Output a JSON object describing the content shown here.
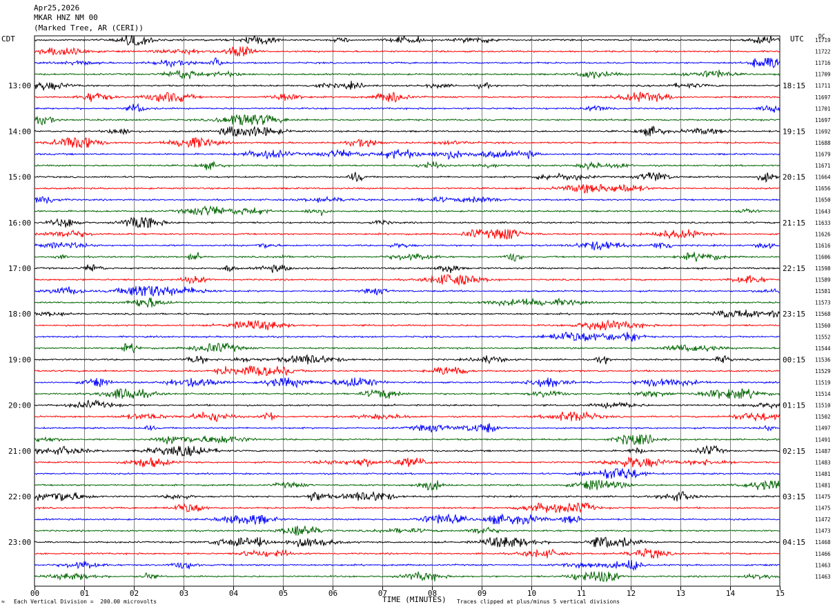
{
  "header": {
    "date": "Apr25,2026",
    "station": "MKAR HNZ NM 00",
    "location": "(Marked Tree, AR (CERI))"
  },
  "left_axis_label": "CDT",
  "right_axis_label": "UTC",
  "dc_label": "DC",
  "footer": {
    "scale_note": "Each Vertical Division =  200.00 microvolts",
    "xlabel": "TIME (MINUTES)",
    "clip_note": "Traces clipped at plus/minus 5 vertical divisions",
    "corner_mark": "≈"
  },
  "colors": {
    "trace_cycle": [
      "#000000",
      "#ff0000",
      "#0000ff",
      "#006400"
    ],
    "grid": "#808080"
  },
  "chart_data": {
    "type": "line",
    "title": "",
    "xlabel": "TIME (MINUTES)",
    "xlim": [
      0,
      15
    ],
    "x_ticks": [
      "00",
      "01",
      "02",
      "03",
      "04",
      "05",
      "06",
      "07",
      "08",
      "09",
      "10",
      "11",
      "12",
      "13",
      "14",
      "15"
    ],
    "rows": 48,
    "row_minutes": 15,
    "left_hour_labels": [
      "13:00",
      "14:00",
      "15:00",
      "16:00",
      "17:00",
      "18:00",
      "19:00",
      "20:00",
      "21:00",
      "22:00",
      "23:00"
    ],
    "right_hour_labels": [
      "18:15",
      "19:15",
      "20:15",
      "21:15",
      "22:15",
      "23:15",
      "00:15",
      "01:15",
      "02:15",
      "03:15",
      "04:15"
    ],
    "dc_offsets": [
      "11719",
      "11722",
      "11716",
      "11709",
      "11711",
      "11697",
      "11701",
      "11697",
      "11692",
      "11688",
      "11679",
      "11671",
      "11664",
      "11656",
      "11650",
      "11643",
      "11633",
      "11626",
      "11616",
      "11606",
      "11598",
      "11589",
      "11581",
      "11573",
      "11568",
      "11560",
      "11552",
      "11544",
      "11536",
      "11529",
      "11519",
      "11514",
      "11510",
      "11502",
      "11497",
      "11491",
      "11487",
      "11483",
      "11481",
      "11481",
      "11475",
      "11475",
      "11472",
      "11473",
      "11468",
      "11466",
      "11463",
      "11463"
    ]
  }
}
